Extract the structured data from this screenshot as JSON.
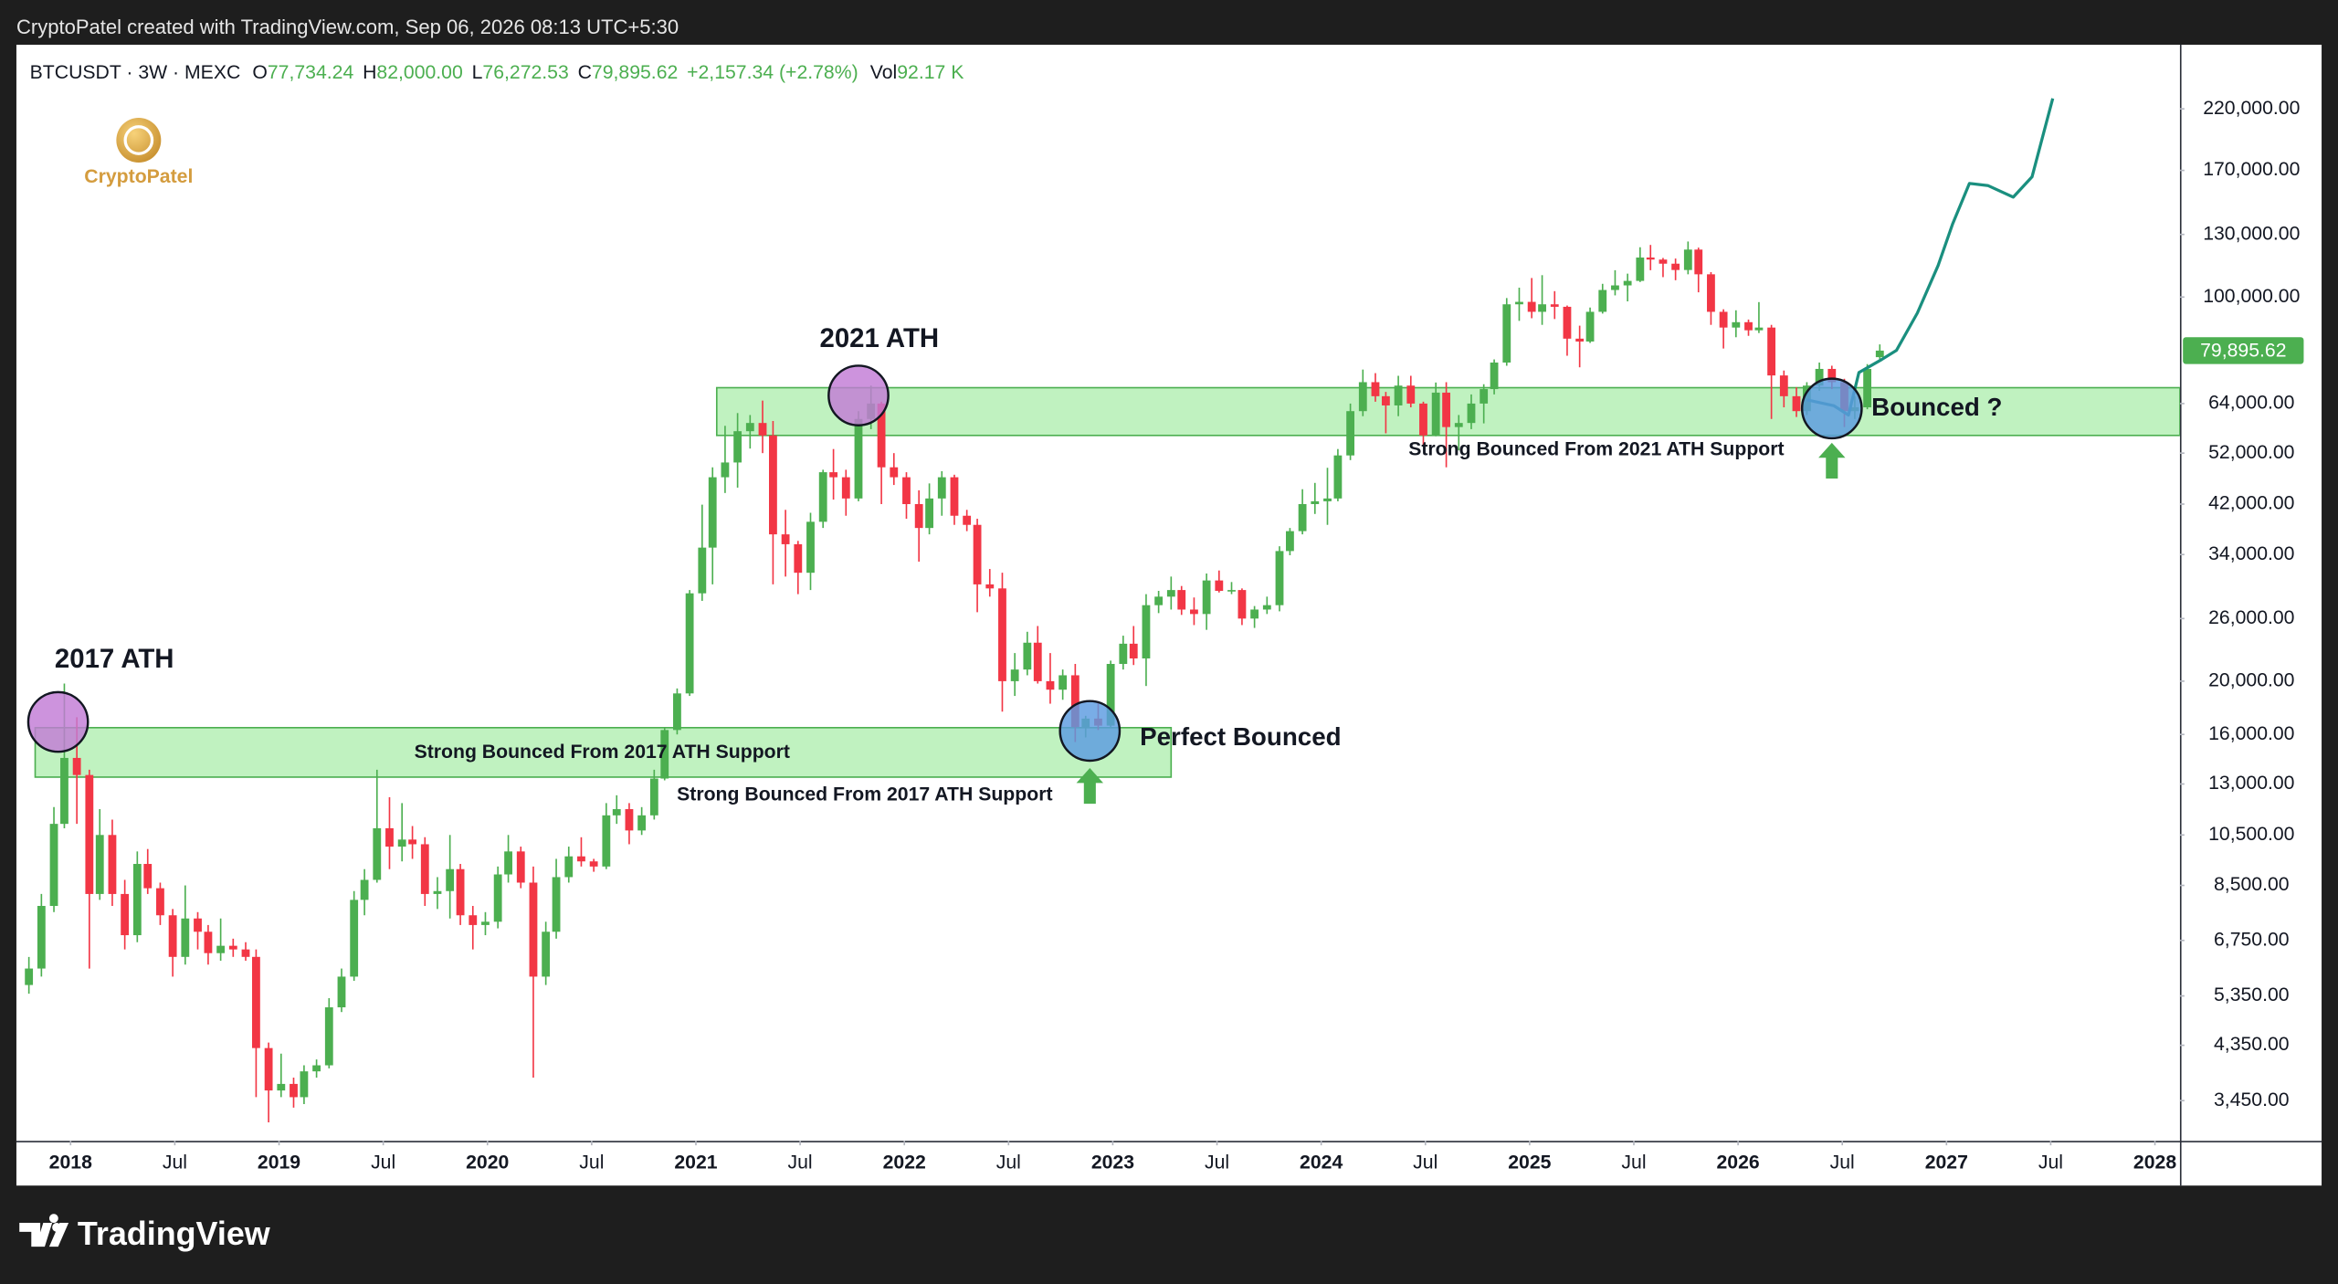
{
  "topbar": "CryptoPatel created with TradingView.com, Sep 06, 2026 08:13 UTC+5:30",
  "footer_brand": "TradingView",
  "watermark": "CryptoPatel",
  "chart_data": {
    "type": "candlestick",
    "header": {
      "symbol": "BTCUSDT · 3W · MEXC",
      "fields": [
        {
          "key": "O",
          "value": "77,734.24"
        },
        {
          "key": "H",
          "value": "82,000.00"
        },
        {
          "key": "L",
          "value": "76,272.53"
        },
        {
          "key": "C",
          "value": "79,895.62"
        }
      ],
      "change": "+2,157.34 (+2.78%)",
      "volume_key": "Vol",
      "volume": "92.17 K"
    },
    "up_color": "#4caf50",
    "down_color": "#f23645",
    "log_scale": true,
    "xlim": [
      2017.74,
      2028.12
    ],
    "ylim": [
      2915,
      287800
    ],
    "xticks": [
      2018,
      {
        "value": 2018.5,
        "label": "Jul"
      },
      2019,
      {
        "value": 2019.5,
        "label": "Jul"
      },
      2020,
      {
        "value": 2020.5,
        "label": "Jul"
      },
      2021,
      {
        "value": 2021.5,
        "label": "Jul"
      },
      2022,
      {
        "value": 2022.5,
        "label": "Jul"
      },
      2023,
      {
        "value": 2023.5,
        "label": "Jul"
      },
      2024,
      {
        "value": 2024.5,
        "label": "Jul"
      },
      2025,
      {
        "value": 2025.5,
        "label": "Jul"
      },
      2026,
      {
        "value": 2026.5,
        "label": "Jul"
      },
      2027,
      {
        "value": 2027.5,
        "label": "Jul"
      },
      2028
    ],
    "yticks": [
      {
        "value": 220000,
        "label": "220,000.00"
      },
      {
        "value": 170000,
        "label": "170,000.00"
      },
      {
        "value": 130000,
        "label": "130,000.00"
      },
      {
        "value": 100000,
        "label": "100,000.00"
      },
      {
        "value": 64000,
        "label": "64,000.00"
      },
      {
        "value": 52000,
        "label": "52,000.00"
      },
      {
        "value": 42000,
        "label": "42,000.00"
      },
      {
        "value": 34000,
        "label": "34,000.00"
      },
      {
        "value": 26000,
        "label": "26,000.00"
      },
      {
        "value": 20000,
        "label": "20,000.00"
      },
      {
        "value": 16000,
        "label": "16,000.00"
      },
      {
        "value": 13000,
        "label": "13,000.00"
      },
      {
        "value": 10500,
        "label": "10,500.00"
      },
      {
        "value": 8500,
        "label": "8,500.00"
      },
      {
        "value": 6750,
        "label": "6,750.00"
      },
      {
        "value": 5350,
        "label": "5,350.00"
      },
      {
        "value": 4350,
        "label": "4,350.00"
      },
      {
        "value": 3450,
        "label": "3,450.00"
      }
    ],
    "last_price_label": "79,895.62",
    "candles": [
      [
        2017.8,
        5600,
        6300,
        5400,
        6000
      ],
      [
        2017.86,
        6000,
        8200,
        5800,
        7800
      ],
      [
        2017.92,
        7800,
        11800,
        7600,
        11000
      ],
      [
        2017.97,
        11000,
        19800,
        10800,
        14500
      ],
      [
        2018.03,
        14500,
        17200,
        11000,
        13500
      ],
      [
        2018.09,
        13500,
        13800,
        6000,
        8200
      ],
      [
        2018.14,
        8200,
        11700,
        8000,
        10500
      ],
      [
        2018.2,
        10500,
        11200,
        7800,
        8200
      ],
      [
        2018.26,
        8200,
        8700,
        6500,
        6900
      ],
      [
        2018.32,
        6900,
        9800,
        6700,
        9300
      ],
      [
        2018.37,
        9300,
        9900,
        8200,
        8400
      ],
      [
        2018.43,
        8400,
        8600,
        7200,
        7500
      ],
      [
        2018.49,
        7500,
        7700,
        5800,
        6300
      ],
      [
        2018.55,
        6300,
        8500,
        6100,
        7400
      ],
      [
        2018.61,
        7400,
        7600,
        6500,
        7000
      ],
      [
        2018.66,
        7000,
        7200,
        6100,
        6400
      ],
      [
        2018.72,
        6400,
        7400,
        6200,
        6600
      ],
      [
        2018.78,
        6600,
        6800,
        6300,
        6500
      ],
      [
        2018.84,
        6500,
        6700,
        6200,
        6300
      ],
      [
        2018.89,
        6300,
        6500,
        3500,
        4300
      ],
      [
        2018.95,
        4300,
        4400,
        3150,
        3600
      ],
      [
        2019.01,
        3600,
        4200,
        3500,
        3700
      ],
      [
        2019.07,
        3700,
        3800,
        3350,
        3500
      ],
      [
        2019.12,
        3500,
        4000,
        3400,
        3900
      ],
      [
        2019.18,
        3900,
        4100,
        3800,
        4000
      ],
      [
        2019.24,
        4000,
        5300,
        3950,
        5100
      ],
      [
        2019.3,
        5100,
        6000,
        5000,
        5800
      ],
      [
        2019.36,
        5800,
        8300,
        5700,
        8000
      ],
      [
        2019.41,
        8000,
        9100,
        7500,
        8700
      ],
      [
        2019.47,
        8700,
        13800,
        8600,
        10800
      ],
      [
        2019.53,
        10800,
        12300,
        9100,
        10000
      ],
      [
        2019.59,
        10000,
        12000,
        9400,
        10300
      ],
      [
        2019.64,
        10300,
        10900,
        9500,
        10100
      ],
      [
        2019.7,
        10100,
        10400,
        7800,
        8200
      ],
      [
        2019.76,
        8200,
        8800,
        7700,
        8300
      ],
      [
        2019.82,
        8300,
        10500,
        7400,
        9100
      ],
      [
        2019.87,
        9100,
        9300,
        7200,
        7500
      ],
      [
        2019.93,
        7500,
        7800,
        6500,
        7200
      ],
      [
        2019.99,
        7200,
        7600,
        6900,
        7300
      ],
      [
        2020.05,
        7300,
        9200,
        7100,
        8900
      ],
      [
        2020.1,
        8900,
        10500,
        8600,
        9800
      ],
      [
        2020.16,
        9800,
        10000,
        8400,
        8600
      ],
      [
        2020.22,
        8600,
        9200,
        3800,
        5800
      ],
      [
        2020.28,
        5800,
        7300,
        5600,
        7000
      ],
      [
        2020.33,
        7000,
        9500,
        6800,
        8800
      ],
      [
        2020.39,
        8800,
        10000,
        8600,
        9600
      ],
      [
        2020.45,
        9600,
        10400,
        9200,
        9400
      ],
      [
        2020.51,
        9400,
        9500,
        9000,
        9200
      ],
      [
        2020.57,
        9200,
        12000,
        9100,
        11400
      ],
      [
        2020.62,
        11400,
        12400,
        11000,
        11700
      ],
      [
        2020.68,
        11700,
        12000,
        10100,
        10700
      ],
      [
        2020.74,
        10700,
        11800,
        10500,
        11400
      ],
      [
        2020.8,
        11400,
        13800,
        11200,
        13300
      ],
      [
        2020.85,
        13300,
        16500,
        13200,
        16300
      ],
      [
        2020.91,
        16300,
        19400,
        16000,
        19000
      ],
      [
        2020.97,
        19000,
        29300,
        18800,
        28900
      ],
      [
        2021.03,
        28900,
        41900,
        28000,
        35000
      ],
      [
        2021.08,
        35000,
        49000,
        30000,
        47000
      ],
      [
        2021.14,
        47000,
        58300,
        44000,
        50000
      ],
      [
        2021.2,
        50000,
        61500,
        45000,
        57000
      ],
      [
        2021.26,
        57000,
        61000,
        53000,
        59000
      ],
      [
        2021.32,
        59000,
        64800,
        52000,
        56000
      ],
      [
        2021.37,
        56000,
        59500,
        30000,
        37000
      ],
      [
        2021.43,
        37000,
        41000,
        31000,
        35500
      ],
      [
        2021.49,
        35500,
        36000,
        28800,
        31500
      ],
      [
        2021.55,
        31500,
        40500,
        29300,
        39000
      ],
      [
        2021.61,
        39000,
        48500,
        38000,
        48000
      ],
      [
        2021.66,
        48000,
        52900,
        42800,
        47000
      ],
      [
        2021.72,
        47000,
        48500,
        40000,
        43000
      ],
      [
        2021.78,
        43000,
        62000,
        42500,
        60000
      ],
      [
        2021.84,
        60000,
        69000,
        57500,
        64000
      ],
      [
        2021.89,
        64000,
        64500,
        42000,
        49000
      ],
      [
        2021.95,
        49000,
        52000,
        45500,
        47000
      ],
      [
        2022.01,
        47000,
        48000,
        39500,
        42000
      ],
      [
        2022.07,
        42000,
        44500,
        33000,
        38000
      ],
      [
        2022.12,
        38000,
        45800,
        37000,
        43000
      ],
      [
        2022.18,
        43000,
        48200,
        40000,
        47000
      ],
      [
        2022.24,
        47000,
        47500,
        38500,
        40000
      ],
      [
        2022.3,
        40000,
        41000,
        37500,
        38500
      ],
      [
        2022.35,
        38500,
        39500,
        26700,
        30000
      ],
      [
        2022.41,
        30000,
        32000,
        28500,
        29500
      ],
      [
        2022.47,
        29500,
        31500,
        17600,
        20000
      ],
      [
        2022.53,
        20000,
        22500,
        18800,
        21000
      ],
      [
        2022.59,
        21000,
        24600,
        20500,
        23500
      ],
      [
        2022.64,
        23500,
        25200,
        19800,
        20000
      ],
      [
        2022.7,
        20000,
        22500,
        18200,
        19300
      ],
      [
        2022.76,
        19300,
        21000,
        18500,
        20500
      ],
      [
        2022.82,
        20500,
        21500,
        15500,
        16500
      ],
      [
        2022.87,
        16500,
        17300,
        15800,
        17100
      ],
      [
        2022.93,
        17100,
        18300,
        16300,
        16600
      ],
      [
        2022.99,
        16600,
        21800,
        16500,
        21500
      ],
      [
        2023.05,
        21500,
        24200,
        21000,
        23400
      ],
      [
        2023.1,
        23400,
        25200,
        21400,
        22000
      ],
      [
        2023.16,
        22000,
        28800,
        19600,
        27500
      ],
      [
        2023.22,
        27500,
        29200,
        26600,
        28500
      ],
      [
        2023.28,
        28500,
        31000,
        27000,
        29300
      ],
      [
        2023.33,
        29300,
        29800,
        26400,
        27000
      ],
      [
        2023.39,
        27000,
        28400,
        25300,
        26500
      ],
      [
        2023.45,
        26500,
        31400,
        24800,
        30500
      ],
      [
        2023.51,
        30500,
        31800,
        29000,
        29200
      ],
      [
        2023.57,
        29200,
        30300,
        28800,
        29300
      ],
      [
        2023.62,
        29300,
        29500,
        25300,
        26000
      ],
      [
        2023.68,
        26000,
        27400,
        25000,
        27000
      ],
      [
        2023.74,
        27000,
        28500,
        26500,
        27500
      ],
      [
        2023.8,
        27500,
        35200,
        26800,
        34500
      ],
      [
        2023.85,
        34500,
        38000,
        33900,
        37500
      ],
      [
        2023.91,
        37500,
        44700,
        37000,
        42000
      ],
      [
        2023.97,
        42000,
        45900,
        40300,
        42500
      ],
      [
        2024.03,
        42500,
        48900,
        38500,
        43000
      ],
      [
        2024.08,
        43000,
        52900,
        42500,
        51500
      ],
      [
        2024.14,
        51500,
        64000,
        50500,
        62000
      ],
      [
        2024.2,
        62000,
        73800,
        60700,
        70000
      ],
      [
        2024.26,
        70000,
        72700,
        64500,
        66000
      ],
      [
        2024.31,
        66000,
        67200,
        56500,
        63500
      ],
      [
        2024.37,
        63500,
        71900,
        60700,
        69000
      ],
      [
        2024.43,
        69000,
        71900,
        63000,
        64000
      ],
      [
        2024.49,
        64000,
        64500,
        53500,
        56000
      ],
      [
        2024.55,
        56000,
        69900,
        55800,
        67000
      ],
      [
        2024.6,
        67000,
        70000,
        49000,
        58000
      ],
      [
        2024.66,
        58000,
        61000,
        52600,
        59000
      ],
      [
        2024.72,
        59000,
        66500,
        57500,
        64000
      ],
      [
        2024.78,
        64000,
        69400,
        58900,
        68000
      ],
      [
        2024.83,
        68000,
        77000,
        66500,
        76000
      ],
      [
        2024.89,
        76000,
        99600,
        75000,
        97000
      ],
      [
        2024.95,
        97000,
        104000,
        90500,
        98000
      ],
      [
        2025.01,
        98000,
        108300,
        91500,
        94000
      ],
      [
        2025.06,
        94000,
        109600,
        89000,
        97000
      ],
      [
        2025.12,
        97000,
        102500,
        91200,
        96000
      ],
      [
        2025.18,
        96000,
        96500,
        78200,
        84000
      ],
      [
        2025.24,
        84000,
        88700,
        74500,
        83000
      ],
      [
        2025.29,
        83000,
        95700,
        82500,
        94000
      ],
      [
        2025.35,
        94000,
        105700,
        93300,
        103000
      ],
      [
        2025.41,
        103000,
        111900,
        100700,
        105000
      ],
      [
        2025.47,
        105000,
        110300,
        98200,
        107000
      ],
      [
        2025.53,
        107000,
        123200,
        106500,
        118000
      ],
      [
        2025.58,
        118000,
        124400,
        111900,
        117000
      ],
      [
        2025.64,
        117000,
        117800,
        108700,
        115000
      ],
      [
        2025.7,
        115000,
        117500,
        107300,
        112000
      ],
      [
        2025.76,
        112000,
        126200,
        110000,
        122000
      ],
      [
        2025.81,
        122000,
        123000,
        102000,
        110000
      ],
      [
        2025.87,
        110000,
        111000,
        89000,
        94000
      ],
      [
        2025.93,
        94000,
        95000,
        80600,
        88000
      ],
      [
        2025.99,
        88000,
        94600,
        84500,
        90000
      ],
      [
        2026.05,
        90000,
        91000,
        85000,
        87000
      ],
      [
        2026.1,
        87000,
        97900,
        86000,
        88000
      ],
      [
        2026.16,
        88000,
        89000,
        60000,
        72000
      ],
      [
        2026.22,
        72000,
        73500,
        63000,
        66000
      ],
      [
        2026.28,
        66000,
        68500,
        60500,
        62000
      ],
      [
        2026.33,
        62000,
        70000,
        61000,
        69000
      ],
      [
        2026.39,
        69000,
        76000,
        67500,
        74000
      ],
      [
        2026.45,
        74000,
        75000,
        68000,
        70000
      ],
      [
        2026.51,
        70000,
        71000,
        58000,
        62000
      ],
      [
        2026.56,
        62000,
        66000,
        60000,
        63000
      ],
      [
        2026.62,
        63000,
        75500,
        62500,
        74000
      ],
      [
        2026.68,
        77734.24,
        82000,
        76272.53,
        79895.62
      ]
    ],
    "zones": [
      {
        "t0": 2017.83,
        "t1": 2023.28,
        "top": 16460,
        "bottom": 13380,
        "label": "Strong Bounced From 2017 ATH Support",
        "label_t": 2020.55,
        "label_price": 14800
      },
      {
        "t0": 2021.1,
        "t1": 2028.12,
        "top": 68400,
        "bottom": 56000
      }
    ],
    "circles": [
      {
        "t": 2017.94,
        "price": 16860,
        "color": "#c27bd6"
      },
      {
        "t": 2021.78,
        "price": 66200,
        "color": "#c27bd6"
      },
      {
        "t": 2022.89,
        "price": 16240,
        "color": "#5b9be0"
      },
      {
        "t": 2026.45,
        "price": 62700,
        "color": "#5b9be0"
      }
    ],
    "arrows": [
      {
        "t": 2022.89,
        "price": 13900
      },
      {
        "t": 2026.45,
        "price": 54300
      }
    ],
    "annotations": [
      {
        "text": "2017 ATH",
        "t": 2018.21,
        "price": 21800
      },
      {
        "text": "2021 ATH",
        "t": 2021.88,
        "price": 83500
      },
      {
        "text": "Strong Bounced From 2017 ATH Support",
        "t": 2021.81,
        "price": 12400
      },
      {
        "text": "Perfect Bounced",
        "t": 2023.13,
        "price": 15730
      },
      {
        "text": "Strong Bounced From 2021 ATH Support",
        "t": 2025.32,
        "price": 52700
      },
      {
        "text": "Bounced ?",
        "t": 2026.64,
        "price": 62600
      }
    ],
    "projection": {
      "color": "#1a8f7f",
      "x": [
        2026.33,
        2026.46,
        2026.53,
        2026.58,
        2026.69,
        2026.76,
        2026.86,
        2026.96,
        2027.03,
        2027.11,
        2027.2,
        2027.32,
        2027.41,
        2027.51
      ],
      "values": [
        65000,
        63400,
        61000,
        72900,
        77000,
        80000,
        93500,
        114100,
        136000,
        161000,
        159500,
        152000,
        165500,
        229900
      ]
    }
  }
}
